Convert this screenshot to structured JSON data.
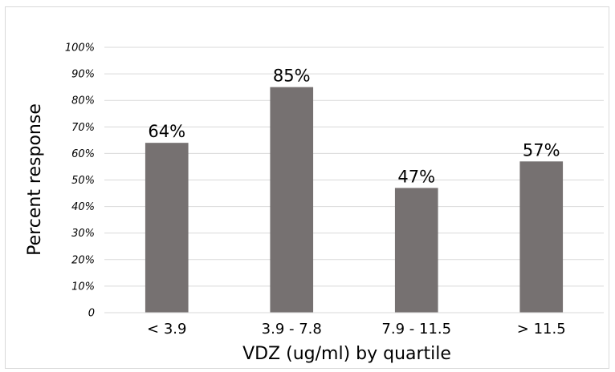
{
  "chart_data": {
    "type": "bar",
    "categories": [
      "< 3.9",
      "3.9 - 7.8",
      "7.9 - 11.5",
      "> 11.5"
    ],
    "values": [
      64,
      85,
      47,
      57
    ],
    "data_labels": [
      "64%",
      "85%",
      "47%",
      "57%"
    ],
    "xlabel": "VDZ (ug/ml) by quartile",
    "ylabel": "Percent response",
    "ylim": [
      0,
      100
    ],
    "yticks": [
      0,
      10,
      20,
      30,
      40,
      50,
      60,
      70,
      80,
      90,
      100
    ],
    "ytick_labels": [
      "0",
      "10%",
      "20%",
      "30%",
      "40%",
      "50%",
      "60%",
      "70%",
      "80%",
      "90%",
      "100%"
    ],
    "grid": true,
    "bar_color": "#767171",
    "grid_color": "#d9d9d9"
  }
}
